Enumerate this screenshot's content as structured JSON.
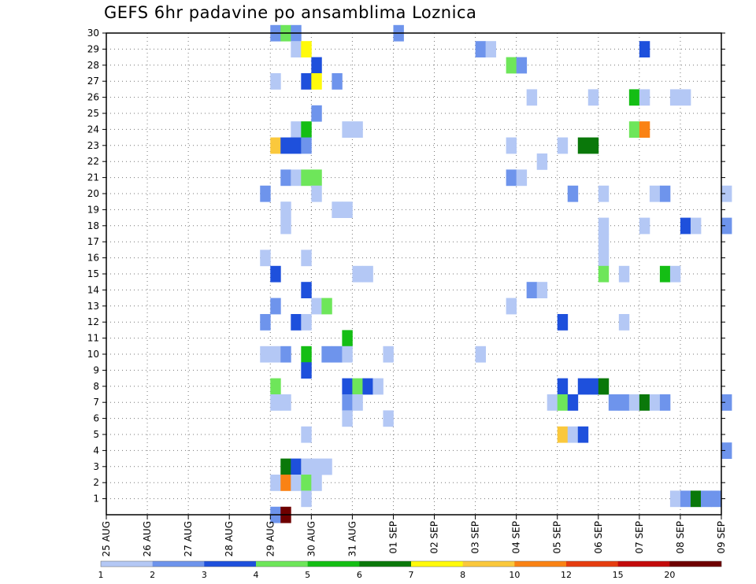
{
  "chart_data": {
    "type": "heatmap",
    "title": "GEFS 6hr padavine po ansamblima Loznica",
    "xlabel": "",
    "ylabel": "",
    "x_tick_labels": [
      "25 AUG",
      "26 AUG",
      "27 AUG",
      "28 AUG",
      "29 AUG",
      "30 AUG",
      "31 AUG",
      "01 SEP",
      "02 SEP",
      "03 SEP",
      "04 SEP",
      "05 SEP",
      "06 SEP",
      "07 SEP",
      "08 SEP",
      "09 SEP"
    ],
    "x_range": [
      "25 AUG",
      "09 SEP"
    ],
    "x_step_hours": 6,
    "y_tick_labels": [
      "1",
      "2",
      "3",
      "4",
      "5",
      "6",
      "7",
      "8",
      "9",
      "10",
      "11",
      "12",
      "13",
      "14",
      "15",
      "16",
      "17",
      "18",
      "19",
      "20",
      "21",
      "22",
      "23",
      "24",
      "25",
      "26",
      "27",
      "28",
      "29",
      "30"
    ],
    "y_range": [
      0,
      30
    ],
    "grid": true,
    "colorbar": {
      "position": "bottom",
      "levels": [
        "1",
        "2",
        "3",
        "4",
        "5",
        "6",
        "7",
        "8",
        "10",
        "12",
        "15",
        "20"
      ],
      "colors": [
        "#b4c8f5",
        "#6e94ec",
        "#1e50dc",
        "#6ee65a",
        "#14be14",
        "#0a780a",
        "#fffa0a",
        "#fac83c",
        "#fa8214",
        "#e63c0f",
        "#c30a0a",
        "#6e0000"
      ]
    },
    "cells": [
      {
        "m": 30,
        "t": "29 AUG 00",
        "c": "#6e94ec"
      },
      {
        "m": 30,
        "t": "29 AUG 06",
        "c": "#6ee65a"
      },
      {
        "m": 30,
        "t": "29 AUG 12",
        "c": "#6e94ec"
      },
      {
        "m": 30,
        "t": "01 SEP 00",
        "c": "#6e94ec"
      },
      {
        "m": 29,
        "t": "29 AUG 12",
        "c": "#b4c8f5"
      },
      {
        "m": 29,
        "t": "29 AUG 18",
        "c": "#fffa0a"
      },
      {
        "m": 29,
        "t": "03 SEP 00",
        "c": "#6e94ec"
      },
      {
        "m": 29,
        "t": "03 SEP 06",
        "c": "#b4c8f5"
      },
      {
        "m": 29,
        "t": "07 SEP 00",
        "c": "#1e50dc"
      },
      {
        "m": 28,
        "t": "30 AUG 00",
        "c": "#1e50dc"
      },
      {
        "m": 28,
        "t": "03 SEP 18",
        "c": "#6ee65a"
      },
      {
        "m": 28,
        "t": "04 SEP 00",
        "c": "#6e94ec"
      },
      {
        "m": 27,
        "t": "29 AUG 00",
        "c": "#b4c8f5"
      },
      {
        "m": 27,
        "t": "29 AUG 18",
        "c": "#1e50dc"
      },
      {
        "m": 27,
        "t": "30 AUG 00",
        "c": "#fffa0a"
      },
      {
        "m": 27,
        "t": "30 AUG 12",
        "c": "#6e94ec"
      },
      {
        "m": 26,
        "t": "04 SEP 06",
        "c": "#b4c8f5"
      },
      {
        "m": 26,
        "t": "05 SEP 18",
        "c": "#b4c8f5"
      },
      {
        "m": 26,
        "t": "06 SEP 18",
        "c": "#14be14"
      },
      {
        "m": 26,
        "t": "07 SEP 00",
        "c": "#b4c8f5"
      },
      {
        "m": 26,
        "t": "07 SEP 18",
        "c": "#b4c8f5"
      },
      {
        "m": 26,
        "t": "08 SEP 00",
        "c": "#b4c8f5"
      },
      {
        "m": 25,
        "t": "30 AUG 00",
        "c": "#6e94ec"
      },
      {
        "m": 24,
        "t": "29 AUG 12",
        "c": "#b4c8f5"
      },
      {
        "m": 24,
        "t": "29 AUG 18",
        "c": "#14be14"
      },
      {
        "m": 24,
        "t": "30 AUG 18",
        "c": "#b4c8f5"
      },
      {
        "m": 24,
        "t": "31 AUG 00",
        "c": "#b4c8f5"
      },
      {
        "m": 24,
        "t": "06 SEP 18",
        "c": "#6ee65a"
      },
      {
        "m": 24,
        "t": "07 SEP 00",
        "c": "#fa8214"
      },
      {
        "m": 23,
        "t": "29 AUG 00",
        "c": "#fac83c"
      },
      {
        "m": 23,
        "t": "29 AUG 06",
        "c": "#1e50dc"
      },
      {
        "m": 23,
        "t": "29 AUG 12",
        "c": "#1e50dc"
      },
      {
        "m": 23,
        "t": "29 AUG 18",
        "c": "#6e94ec"
      },
      {
        "m": 23,
        "t": "03 SEP 18",
        "c": "#b4c8f5"
      },
      {
        "m": 23,
        "t": "05 SEP 00",
        "c": "#b4c8f5"
      },
      {
        "m": 23,
        "t": "05 SEP 12",
        "c": "#0a780a"
      },
      {
        "m": 23,
        "t": "05 SEP 18",
        "c": "#0a780a"
      },
      {
        "m": 22,
        "t": "04 SEP 12",
        "c": "#b4c8f5"
      },
      {
        "m": 21,
        "t": "29 AUG 06",
        "c": "#6e94ec"
      },
      {
        "m": 21,
        "t": "29 AUG 12",
        "c": "#b4c8f5"
      },
      {
        "m": 21,
        "t": "29 AUG 18",
        "c": "#6ee65a"
      },
      {
        "m": 21,
        "t": "30 AUG 00",
        "c": "#6ee65a"
      },
      {
        "m": 21,
        "t": "03 SEP 18",
        "c": "#6e94ec"
      },
      {
        "m": 21,
        "t": "04 SEP 00",
        "c": "#b4c8f5"
      },
      {
        "m": 20,
        "t": "28 AUG 18",
        "c": "#6e94ec"
      },
      {
        "m": 20,
        "t": "30 AUG 00",
        "c": "#b4c8f5"
      },
      {
        "m": 20,
        "t": "05 SEP 06",
        "c": "#6e94ec"
      },
      {
        "m": 20,
        "t": "06 SEP 00",
        "c": "#b4c8f5"
      },
      {
        "m": 20,
        "t": "07 SEP 06",
        "c": "#b4c8f5"
      },
      {
        "m": 20,
        "t": "07 SEP 12",
        "c": "#6e94ec"
      },
      {
        "m": 20,
        "t": "09 SEP 00",
        "c": "#b4c8f5"
      },
      {
        "m": 19,
        "t": "29 AUG 06",
        "c": "#b4c8f5"
      },
      {
        "m": 19,
        "t": "30 AUG 12",
        "c": "#b4c8f5"
      },
      {
        "m": 19,
        "t": "30 AUG 18",
        "c": "#b4c8f5"
      },
      {
        "m": 18,
        "t": "29 AUG 06",
        "c": "#b4c8f5"
      },
      {
        "m": 18,
        "t": "06 SEP 00",
        "c": "#b4c8f5"
      },
      {
        "m": 18,
        "t": "07 SEP 00",
        "c": "#b4c8f5"
      },
      {
        "m": 18,
        "t": "08 SEP 00",
        "c": "#1e50dc"
      },
      {
        "m": 18,
        "t": "08 SEP 06",
        "c": "#b4c8f5"
      },
      {
        "m": 18,
        "t": "09 SEP 00",
        "c": "#6e94ec"
      },
      {
        "m": 17,
        "t": "06 SEP 00",
        "c": "#b4c8f5"
      },
      {
        "m": 16,
        "t": "28 AUG 18",
        "c": "#b4c8f5"
      },
      {
        "m": 16,
        "t": "29 AUG 18",
        "c": "#b4c8f5"
      },
      {
        "m": 16,
        "t": "06 SEP 00",
        "c": "#b4c8f5"
      },
      {
        "m": 15,
        "t": "29 AUG 00",
        "c": "#1e50dc"
      },
      {
        "m": 15,
        "t": "31 AUG 00",
        "c": "#b4c8f5"
      },
      {
        "m": 15,
        "t": "31 AUG 06",
        "c": "#b4c8f5"
      },
      {
        "m": 15,
        "t": "06 SEP 00",
        "c": "#6ee65a"
      },
      {
        "m": 15,
        "t": "06 SEP 12",
        "c": "#b4c8f5"
      },
      {
        "m": 15,
        "t": "07 SEP 12",
        "c": "#14be14"
      },
      {
        "m": 15,
        "t": "07 SEP 18",
        "c": "#b4c8f5"
      },
      {
        "m": 14,
        "t": "29 AUG 18",
        "c": "#1e50dc"
      },
      {
        "m": 14,
        "t": "04 SEP 06",
        "c": "#6e94ec"
      },
      {
        "m": 14,
        "t": "04 SEP 12",
        "c": "#b4c8f5"
      },
      {
        "m": 13,
        "t": "29 AUG 00",
        "c": "#6e94ec"
      },
      {
        "m": 13,
        "t": "30 AUG 00",
        "c": "#b4c8f5"
      },
      {
        "m": 13,
        "t": "30 AUG 06",
        "c": "#6ee65a"
      },
      {
        "m": 13,
        "t": "03 SEP 18",
        "c": "#b4c8f5"
      },
      {
        "m": 12,
        "t": "28 AUG 18",
        "c": "#6e94ec"
      },
      {
        "m": 12,
        "t": "29 AUG 12",
        "c": "#1e50dc"
      },
      {
        "m": 12,
        "t": "29 AUG 18",
        "c": "#b4c8f5"
      },
      {
        "m": 12,
        "t": "05 SEP 00",
        "c": "#1e50dc"
      },
      {
        "m": 12,
        "t": "06 SEP 12",
        "c": "#b4c8f5"
      },
      {
        "m": 11,
        "t": "30 AUG 18",
        "c": "#14be14"
      },
      {
        "m": 10,
        "t": "28 AUG 18",
        "c": "#b4c8f5"
      },
      {
        "m": 10,
        "t": "29 AUG 00",
        "c": "#b4c8f5"
      },
      {
        "m": 10,
        "t": "29 AUG 06",
        "c": "#6e94ec"
      },
      {
        "m": 10,
        "t": "29 AUG 18",
        "c": "#14be14"
      },
      {
        "m": 10,
        "t": "30 AUG 06",
        "c": "#6e94ec"
      },
      {
        "m": 10,
        "t": "30 AUG 12",
        "c": "#6e94ec"
      },
      {
        "m": 10,
        "t": "30 AUG 18",
        "c": "#b4c8f5"
      },
      {
        "m": 10,
        "t": "31 AUG 18",
        "c": "#b4c8f5"
      },
      {
        "m": 10,
        "t": "03 SEP 00",
        "c": "#b4c8f5"
      },
      {
        "m": 9,
        "t": "29 AUG 18",
        "c": "#1e50dc"
      },
      {
        "m": 8,
        "t": "29 AUG 00",
        "c": "#6ee65a"
      },
      {
        "m": 8,
        "t": "30 AUG 18",
        "c": "#1e50dc"
      },
      {
        "m": 8,
        "t": "31 AUG 00",
        "c": "#6ee65a"
      },
      {
        "m": 8,
        "t": "31 AUG 06",
        "c": "#1e50dc"
      },
      {
        "m": 8,
        "t": "31 AUG 12",
        "c": "#b4c8f5"
      },
      {
        "m": 8,
        "t": "05 SEP 00",
        "c": "#1e50dc"
      },
      {
        "m": 8,
        "t": "05 SEP 12",
        "c": "#1e50dc"
      },
      {
        "m": 8,
        "t": "05 SEP 18",
        "c": "#1e50dc"
      },
      {
        "m": 8,
        "t": "06 SEP 00",
        "c": "#0a780a"
      },
      {
        "m": 7,
        "t": "29 AUG 00",
        "c": "#b4c8f5"
      },
      {
        "m": 7,
        "t": "29 AUG 06",
        "c": "#b4c8f5"
      },
      {
        "m": 7,
        "t": "30 AUG 18",
        "c": "#6e94ec"
      },
      {
        "m": 7,
        "t": "31 AUG 00",
        "c": "#b4c8f5"
      },
      {
        "m": 7,
        "t": "04 SEP 18",
        "c": "#b4c8f5"
      },
      {
        "m": 7,
        "t": "05 SEP 00",
        "c": "#6ee65a"
      },
      {
        "m": 7,
        "t": "05 SEP 06",
        "c": "#1e50dc"
      },
      {
        "m": 7,
        "t": "06 SEP 06",
        "c": "#6e94ec"
      },
      {
        "m": 7,
        "t": "06 SEP 12",
        "c": "#6e94ec"
      },
      {
        "m": 7,
        "t": "06 SEP 18",
        "c": "#b4c8f5"
      },
      {
        "m": 7,
        "t": "07 SEP 00",
        "c": "#0a780a"
      },
      {
        "m": 7,
        "t": "07 SEP 06",
        "c": "#b4c8f5"
      },
      {
        "m": 7,
        "t": "07 SEP 12",
        "c": "#6e94ec"
      },
      {
        "m": 7,
        "t": "09 SEP 00",
        "c": "#6e94ec"
      },
      {
        "m": 6,
        "t": "30 AUG 18",
        "c": "#b4c8f5"
      },
      {
        "m": 6,
        "t": "31 AUG 18",
        "c": "#b4c8f5"
      },
      {
        "m": 5,
        "t": "29 AUG 18",
        "c": "#b4c8f5"
      },
      {
        "m": 5,
        "t": "05 SEP 00",
        "c": "#fac83c"
      },
      {
        "m": 5,
        "t": "05 SEP 06",
        "c": "#b4c8f5"
      },
      {
        "m": 5,
        "t": "05 SEP 12",
        "c": "#1e50dc"
      },
      {
        "m": 4,
        "t": "09 SEP 00",
        "c": "#6e94ec"
      },
      {
        "m": 3,
        "t": "29 AUG 06",
        "c": "#0a780a"
      },
      {
        "m": 3,
        "t": "29 AUG 12",
        "c": "#1e50dc"
      },
      {
        "m": 3,
        "t": "29 AUG 18",
        "c": "#b4c8f5"
      },
      {
        "m": 3,
        "t": "30 AUG 00",
        "c": "#b4c8f5"
      },
      {
        "m": 3,
        "t": "30 AUG 06",
        "c": "#b4c8f5"
      },
      {
        "m": 2,
        "t": "29 AUG 00",
        "c": "#b4c8f5"
      },
      {
        "m": 2,
        "t": "29 AUG 06",
        "c": "#fa8214"
      },
      {
        "m": 2,
        "t": "29 AUG 12",
        "c": "#b4c8f5"
      },
      {
        "m": 2,
        "t": "29 AUG 18",
        "c": "#6ee65a"
      },
      {
        "m": 2,
        "t": "30 AUG 00",
        "c": "#b4c8f5"
      },
      {
        "m": 1,
        "t": "29 AUG 18",
        "c": "#b4c8f5"
      },
      {
        "m": 1,
        "t": "07 SEP 18",
        "c": "#b4c8f5"
      },
      {
        "m": 1,
        "t": "08 SEP 00",
        "c": "#6e94ec"
      },
      {
        "m": 1,
        "t": "08 SEP 06",
        "c": "#0a780a"
      },
      {
        "m": 1,
        "t": "08 SEP 12",
        "c": "#6e94ec"
      },
      {
        "m": 1,
        "t": "08 SEP 18",
        "c": "#6e94ec"
      },
      {
        "m": 0,
        "t": "29 AUG 00",
        "c": "#6e94ec"
      },
      {
        "m": 0,
        "t": "29 AUG 06",
        "c": "#6e0000"
      }
    ]
  }
}
